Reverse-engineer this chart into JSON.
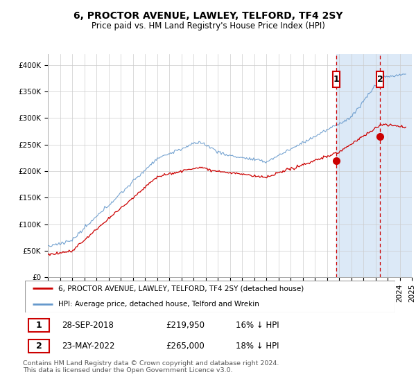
{
  "title": "6, PROCTOR AVENUE, LAWLEY, TELFORD, TF4 2SY",
  "subtitle": "Price paid vs. HM Land Registry's House Price Index (HPI)",
  "ylabel_vals": [
    0,
    50000,
    100000,
    150000,
    200000,
    250000,
    300000,
    350000,
    400000
  ],
  "ylabel_labels": [
    "£0",
    "£50K",
    "£100K",
    "£150K",
    "£200K",
    "£250K",
    "£300K",
    "£350K",
    "£400K"
  ],
  "xlim_start": 1995.0,
  "xlim_end": 2025.0,
  "ylim_min": 0,
  "ylim_max": 420000,
  "sale1_date": 2018.75,
  "sale1_price": 219950,
  "sale1_label": "1",
  "sale1_text": "28-SEP-2018",
  "sale1_price_str": "£219,950",
  "sale1_hpi": "16% ↓ HPI",
  "sale2_date": 2022.38,
  "sale2_price": 265000,
  "sale2_label": "2",
  "sale2_text": "23-MAY-2022",
  "sale2_price_str": "£265,000",
  "sale2_hpi": "18% ↓ HPI",
  "hpi_color": "#6699CC",
  "price_color": "#CC0000",
  "marker_box_color": "#CC0000",
  "shade_color": "#DCE9F7",
  "grid_color": "#CCCCCC",
  "legend_line1": "6, PROCTOR AVENUE, LAWLEY, TELFORD, TF4 2SY (detached house)",
  "legend_line2": "HPI: Average price, detached house, Telford and Wrekin",
  "footnote": "Contains HM Land Registry data © Crown copyright and database right 2024.\nThis data is licensed under the Open Government Licence v3.0.",
  "title_fontsize": 10,
  "subtitle_fontsize": 8.5,
  "tick_fontsize": 7.5
}
